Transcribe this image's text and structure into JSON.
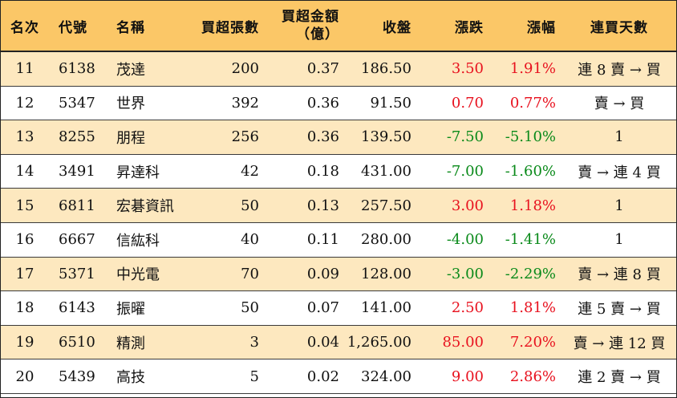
{
  "header": {
    "rank": "名次",
    "code": "代號",
    "name": "名稱",
    "lots": "買超張數",
    "amount_line1": "買超金額",
    "amount_line2": "（億）",
    "close": "收盤",
    "change": "漲跌",
    "pct": "漲幅",
    "days": "連買天數"
  },
  "colors": {
    "header_bg": "#fbc767",
    "stripe_bg": "#fde8bf",
    "up": "#e8121f",
    "down": "#0a8a1a"
  },
  "rows": [
    {
      "rank": "11",
      "code": "6138",
      "name": "茂達",
      "lots": "200",
      "amount": "0.37",
      "close": "186.50",
      "change": "3.50",
      "pct": "1.91%",
      "days": "連 8 賣 → 買",
      "dir": "up"
    },
    {
      "rank": "12",
      "code": "5347",
      "name": "世界",
      "lots": "392",
      "amount": "0.36",
      "close": "91.50",
      "change": "0.70",
      "pct": "0.77%",
      "days": "賣 → 買",
      "dir": "up"
    },
    {
      "rank": "13",
      "code": "8255",
      "name": "朋程",
      "lots": "256",
      "amount": "0.36",
      "close": "139.50",
      "change": "-7.50",
      "pct": "-5.10%",
      "days": "1",
      "dir": "down"
    },
    {
      "rank": "14",
      "code": "3491",
      "name": "昇達科",
      "lots": "42",
      "amount": "0.18",
      "close": "431.00",
      "change": "-7.00",
      "pct": "-1.60%",
      "days": "賣 → 連 4 買",
      "dir": "down"
    },
    {
      "rank": "15",
      "code": "6811",
      "name": "宏碁資訊",
      "lots": "50",
      "amount": "0.13",
      "close": "257.50",
      "change": "3.00",
      "pct": "1.18%",
      "days": "1",
      "dir": "up"
    },
    {
      "rank": "16",
      "code": "6667",
      "name": "信紘科",
      "lots": "40",
      "amount": "0.11",
      "close": "280.00",
      "change": "-4.00",
      "pct": "-1.41%",
      "days": "1",
      "dir": "down"
    },
    {
      "rank": "17",
      "code": "5371",
      "name": "中光電",
      "lots": "70",
      "amount": "0.09",
      "close": "128.00",
      "change": "-3.00",
      "pct": "-2.29%",
      "days": "賣 → 連 8 買",
      "dir": "down"
    },
    {
      "rank": "18",
      "code": "6143",
      "name": "振曜",
      "lots": "50",
      "amount": "0.07",
      "close": "141.00",
      "change": "2.50",
      "pct": "1.81%",
      "days": "連 5 賣 → 買",
      "dir": "up"
    },
    {
      "rank": "19",
      "code": "6510",
      "name": "精測",
      "lots": "3",
      "amount": "0.04",
      "close": "1,265.00",
      "change": "85.00",
      "pct": "7.20%",
      "days": "賣 → 連 12 買",
      "dir": "up"
    },
    {
      "rank": "20",
      "code": "5439",
      "name": "高技",
      "lots": "5",
      "amount": "0.02",
      "close": "324.00",
      "change": "9.00",
      "pct": "2.86%",
      "days": "連 2 賣 → 買",
      "dir": "up"
    }
  ]
}
